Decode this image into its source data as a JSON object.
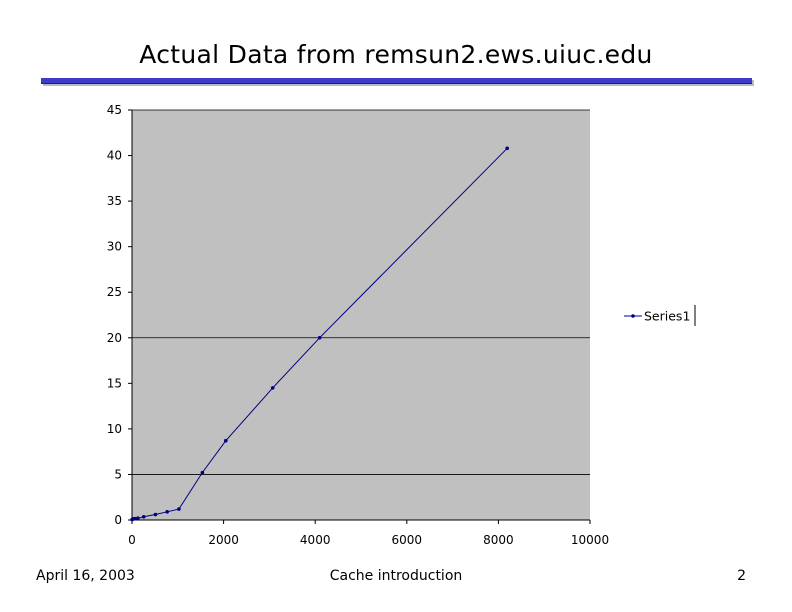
{
  "slide": {
    "title": "Actual Data from remsun2.ews.uiuc.edu",
    "footer_date": "April 16, 2003",
    "footer_title": "Cache introduction",
    "page_number": "2"
  },
  "colors": {
    "plot_background": "#c0c0c0",
    "series_line": "#000080",
    "gridline": "#000000",
    "title_rule": "#3c3cc8"
  },
  "chart_data": {
    "type": "line",
    "title": "",
    "xlabel": "",
    "ylabel": "",
    "xlim": [
      0,
      10000
    ],
    "ylim": [
      0,
      45
    ],
    "x_ticks": [
      "0",
      "2000",
      "4000",
      "6000",
      "8000",
      "10000"
    ],
    "y_ticks": [
      "0",
      "5",
      "10",
      "15",
      "20",
      "25",
      "30",
      "35",
      "40",
      "45"
    ],
    "grid": "horizontal at 5, 20, 45",
    "legend": {
      "position": "right",
      "entries": [
        "Series1"
      ]
    },
    "series": [
      {
        "name": "Series1",
        "x": [
          0,
          16,
          32,
          64,
          128,
          256,
          512,
          768,
          1024,
          1536,
          2048,
          3072,
          4096,
          8192
        ],
        "y": [
          0.05,
          0.1,
          0.12,
          0.15,
          0.2,
          0.35,
          0.6,
          0.9,
          1.2,
          5.2,
          8.7,
          14.5,
          20.0,
          40.8
        ]
      }
    ]
  }
}
